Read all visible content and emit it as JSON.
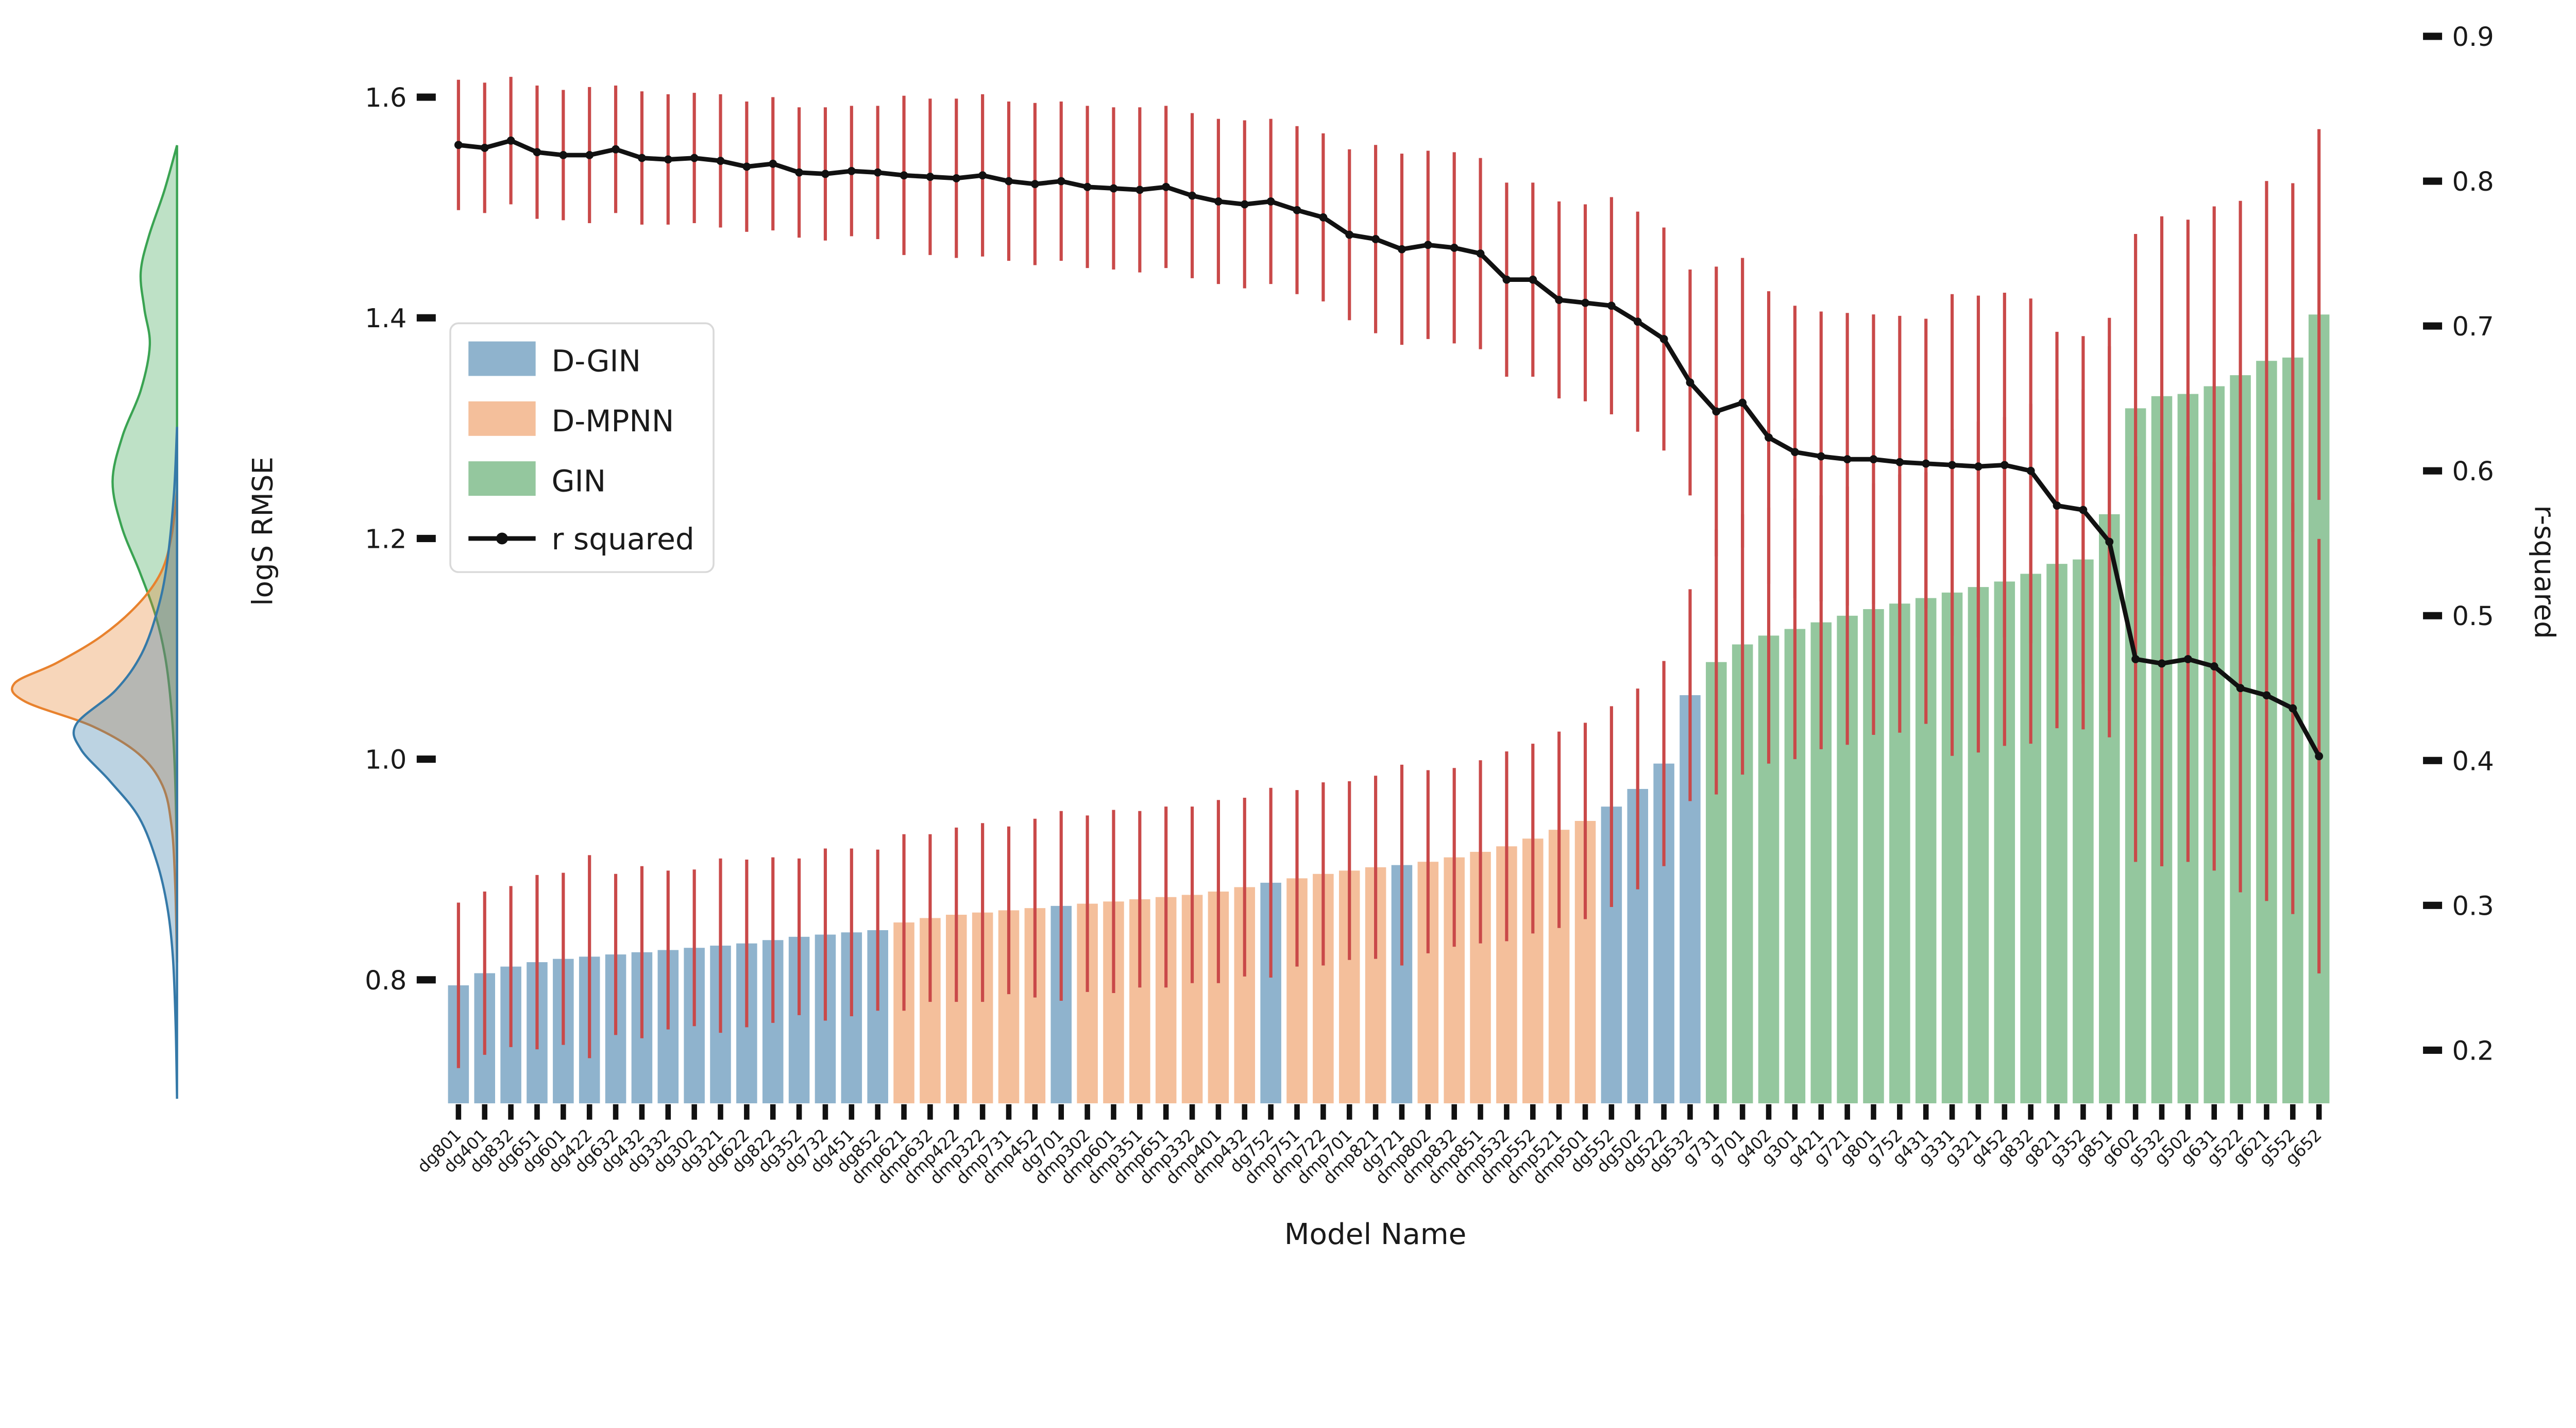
{
  "figure": {
    "xlabel": "Model Name",
    "ylabel_left": "logS RMSE",
    "ylabel_right": "r-squared"
  },
  "legend": {
    "items": [
      {
        "label": "D-GIN",
        "swatch": "#8fb3cd",
        "type": "patch"
      },
      {
        "label": "D-MPNN",
        "swatch": "#f4bf9b",
        "type": "patch"
      },
      {
        "label": "GIN",
        "swatch": "#94c79e",
        "type": "patch"
      },
      {
        "label": "r squared",
        "swatch": "#111111",
        "type": "line"
      }
    ]
  },
  "chart_data": {
    "type": "bar",
    "title": "",
    "xlabel": "Model Name",
    "ylabel": "logS RMSE",
    "ylabel_right": "r-squared",
    "grid": false,
    "legend_position": "upper-left-inside",
    "yticks_left": [
      1.6,
      1.4,
      1.2,
      1.0,
      0.8
    ],
    "yticks_right": [
      0.9,
      0.8,
      0.7,
      0.6,
      0.5,
      0.4,
      0.3,
      0.2
    ],
    "ylim_left": [
      0.688,
      1.663
    ],
    "ylim_right": [
      0.163,
      0.906
    ],
    "colors": {
      "error_bar": "#c94949",
      "r2_line": "#111111",
      "groups": {
        "D-GIN": {
          "bar": "#8fb3cd",
          "kde": "#3579a8"
        },
        "D-MPNN": {
          "bar": "#f4bf9b",
          "kde": "#e8822e"
        },
        "GIN": {
          "bar": "#94c79e",
          "kde": "#3aa352"
        }
      }
    },
    "bars": [
      {
        "label": "dg801",
        "group": "D-GIN",
        "rmse": 0.795,
        "rmse_err": 0.075,
        "r2": 0.825,
        "r2_err": 0.045
      },
      {
        "label": "dg401",
        "group": "D-GIN",
        "rmse": 0.806,
        "rmse_err": 0.074,
        "r2": 0.823,
        "r2_err": 0.045
      },
      {
        "label": "dg832",
        "group": "D-GIN",
        "rmse": 0.812,
        "rmse_err": 0.073,
        "r2": 0.828,
        "r2_err": 0.044
      },
      {
        "label": "dg651",
        "group": "D-GIN",
        "rmse": 0.816,
        "rmse_err": 0.079,
        "r2": 0.82,
        "r2_err": 0.046
      },
      {
        "label": "dg601",
        "group": "D-GIN",
        "rmse": 0.819,
        "rmse_err": 0.078,
        "r2": 0.818,
        "r2_err": 0.045
      },
      {
        "label": "dg422",
        "group": "D-GIN",
        "rmse": 0.821,
        "rmse_err": 0.092,
        "r2": 0.818,
        "r2_err": 0.047
      },
      {
        "label": "dg632",
        "group": "D-GIN",
        "rmse": 0.823,
        "rmse_err": 0.073,
        "r2": 0.822,
        "r2_err": 0.044
      },
      {
        "label": "dg432",
        "group": "D-GIN",
        "rmse": 0.825,
        "rmse_err": 0.078,
        "r2": 0.816,
        "r2_err": 0.046
      },
      {
        "label": "dg332",
        "group": "D-GIN",
        "rmse": 0.827,
        "rmse_err": 0.072,
        "r2": 0.815,
        "r2_err": 0.045
      },
      {
        "label": "dg302",
        "group": "D-GIN",
        "rmse": 0.829,
        "rmse_err": 0.071,
        "r2": 0.816,
        "r2_err": 0.045
      },
      {
        "label": "dg321",
        "group": "D-GIN",
        "rmse": 0.831,
        "rmse_err": 0.079,
        "r2": 0.814,
        "r2_err": 0.046
      },
      {
        "label": "dg622",
        "group": "D-GIN",
        "rmse": 0.833,
        "rmse_err": 0.076,
        "r2": 0.81,
        "r2_err": 0.045
      },
      {
        "label": "dg822",
        "group": "D-GIN",
        "rmse": 0.836,
        "rmse_err": 0.075,
        "r2": 0.812,
        "r2_err": 0.046
      },
      {
        "label": "dg352",
        "group": "D-GIN",
        "rmse": 0.839,
        "rmse_err": 0.071,
        "r2": 0.806,
        "r2_err": 0.045
      },
      {
        "label": "dg732",
        "group": "D-GIN",
        "rmse": 0.841,
        "rmse_err": 0.078,
        "r2": 0.805,
        "r2_err": 0.046
      },
      {
        "label": "dg451",
        "group": "D-GIN",
        "rmse": 0.843,
        "rmse_err": 0.076,
        "r2": 0.807,
        "r2_err": 0.045
      },
      {
        "label": "dg852",
        "group": "D-GIN",
        "rmse": 0.845,
        "rmse_err": 0.073,
        "r2": 0.806,
        "r2_err": 0.046
      },
      {
        "label": "dmp621",
        "group": "D-MPNN",
        "rmse": 0.852,
        "rmse_err": 0.08,
        "r2": 0.804,
        "r2_err": 0.055
      },
      {
        "label": "dmp632",
        "group": "D-MPNN",
        "rmse": 0.856,
        "rmse_err": 0.076,
        "r2": 0.803,
        "r2_err": 0.054
      },
      {
        "label": "dmp422",
        "group": "D-MPNN",
        "rmse": 0.859,
        "rmse_err": 0.079,
        "r2": 0.802,
        "r2_err": 0.055
      },
      {
        "label": "dmp322",
        "group": "D-MPNN",
        "rmse": 0.861,
        "rmse_err": 0.081,
        "r2": 0.804,
        "r2_err": 0.056
      },
      {
        "label": "dmp731",
        "group": "D-MPNN",
        "rmse": 0.863,
        "rmse_err": 0.076,
        "r2": 0.8,
        "r2_err": 0.055
      },
      {
        "label": "dmp452",
        "group": "D-MPNN",
        "rmse": 0.865,
        "rmse_err": 0.081,
        "r2": 0.798,
        "r2_err": 0.056
      },
      {
        "label": "dg701",
        "group": "D-GIN",
        "rmse": 0.867,
        "rmse_err": 0.086,
        "r2": 0.8,
        "r2_err": 0.055
      },
      {
        "label": "dmp302",
        "group": "D-MPNN",
        "rmse": 0.869,
        "rmse_err": 0.08,
        "r2": 0.796,
        "r2_err": 0.056
      },
      {
        "label": "dmp601",
        "group": "D-MPNN",
        "rmse": 0.871,
        "rmse_err": 0.083,
        "r2": 0.795,
        "r2_err": 0.056
      },
      {
        "label": "dmp351",
        "group": "D-MPNN",
        "rmse": 0.873,
        "rmse_err": 0.08,
        "r2": 0.794,
        "r2_err": 0.057
      },
      {
        "label": "dmp651",
        "group": "D-MPNN",
        "rmse": 0.875,
        "rmse_err": 0.082,
        "r2": 0.796,
        "r2_err": 0.056
      },
      {
        "label": "dmp332",
        "group": "D-MPNN",
        "rmse": 0.877,
        "rmse_err": 0.08,
        "r2": 0.79,
        "r2_err": 0.057
      },
      {
        "label": "dmp401",
        "group": "D-MPNN",
        "rmse": 0.88,
        "rmse_err": 0.083,
        "r2": 0.786,
        "r2_err": 0.057
      },
      {
        "label": "dmp432",
        "group": "D-MPNN",
        "rmse": 0.884,
        "rmse_err": 0.081,
        "r2": 0.784,
        "r2_err": 0.058
      },
      {
        "label": "dg752",
        "group": "D-GIN",
        "rmse": 0.888,
        "rmse_err": 0.086,
        "r2": 0.786,
        "r2_err": 0.057
      },
      {
        "label": "dmp751",
        "group": "D-MPNN",
        "rmse": 0.892,
        "rmse_err": 0.08,
        "r2": 0.78,
        "r2_err": 0.058
      },
      {
        "label": "dmp722",
        "group": "D-MPNN",
        "rmse": 0.896,
        "rmse_err": 0.083,
        "r2": 0.775,
        "r2_err": 0.058
      },
      {
        "label": "dmp701",
        "group": "D-MPNN",
        "rmse": 0.899,
        "rmse_err": 0.081,
        "r2": 0.763,
        "r2_err": 0.059
      },
      {
        "label": "dmp821",
        "group": "D-MPNN",
        "rmse": 0.902,
        "rmse_err": 0.083,
        "r2": 0.76,
        "r2_err": 0.065
      },
      {
        "label": "dg721",
        "group": "D-GIN",
        "rmse": 0.904,
        "rmse_err": 0.091,
        "r2": 0.753,
        "r2_err": 0.066
      },
      {
        "label": "dmp802",
        "group": "D-MPNN",
        "rmse": 0.907,
        "rmse_err": 0.083,
        "r2": 0.756,
        "r2_err": 0.065
      },
      {
        "label": "dmp832",
        "group": "D-MPNN",
        "rmse": 0.911,
        "rmse_err": 0.081,
        "r2": 0.754,
        "r2_err": 0.066
      },
      {
        "label": "dmp851",
        "group": "D-MPNN",
        "rmse": 0.916,
        "rmse_err": 0.083,
        "r2": 0.75,
        "r2_err": 0.066
      },
      {
        "label": "dmp532",
        "group": "D-MPNN",
        "rmse": 0.921,
        "rmse_err": 0.086,
        "r2": 0.732,
        "r2_err": 0.067
      },
      {
        "label": "dmp552",
        "group": "D-MPNN",
        "rmse": 0.928,
        "rmse_err": 0.086,
        "r2": 0.732,
        "r2_err": 0.067
      },
      {
        "label": "dmp521",
        "group": "D-MPNN",
        "rmse": 0.936,
        "rmse_err": 0.089,
        "r2": 0.718,
        "r2_err": 0.068
      },
      {
        "label": "dmp501",
        "group": "D-MPNN",
        "rmse": 0.944,
        "rmse_err": 0.089,
        "r2": 0.716,
        "r2_err": 0.068
      },
      {
        "label": "dg552",
        "group": "D-GIN",
        "rmse": 0.957,
        "rmse_err": 0.091,
        "r2": 0.714,
        "r2_err": 0.075
      },
      {
        "label": "dg502",
        "group": "D-GIN",
        "rmse": 0.973,
        "rmse_err": 0.091,
        "r2": 0.703,
        "r2_err": 0.076
      },
      {
        "label": "dg522",
        "group": "D-GIN",
        "rmse": 0.996,
        "rmse_err": 0.093,
        "r2": 0.691,
        "r2_err": 0.077
      },
      {
        "label": "dg532",
        "group": "D-GIN",
        "rmse": 1.058,
        "rmse_err": 0.096,
        "r2": 0.661,
        "r2_err": 0.078
      },
      {
        "label": "g731",
        "group": "GIN",
        "rmse": 1.088,
        "rmse_err": 0.12,
        "r2": 0.641,
        "r2_err": 0.1
      },
      {
        "label": "g701",
        "group": "GIN",
        "rmse": 1.104,
        "rmse_err": 0.118,
        "r2": 0.647,
        "r2_err": 0.1
      },
      {
        "label": "g402",
        "group": "GIN",
        "rmse": 1.112,
        "rmse_err": 0.116,
        "r2": 0.623,
        "r2_err": 0.101
      },
      {
        "label": "g301",
        "group": "GIN",
        "rmse": 1.118,
        "rmse_err": 0.118,
        "r2": 0.613,
        "r2_err": 0.101
      },
      {
        "label": "g421",
        "group": "GIN",
        "rmse": 1.124,
        "rmse_err": 0.115,
        "r2": 0.61,
        "r2_err": 0.1
      },
      {
        "label": "g721",
        "group": "GIN",
        "rmse": 1.13,
        "rmse_err": 0.117,
        "r2": 0.608,
        "r2_err": 0.101
      },
      {
        "label": "g801",
        "group": "GIN",
        "rmse": 1.136,
        "rmse_err": 0.114,
        "r2": 0.608,
        "r2_err": 0.1
      },
      {
        "label": "g752",
        "group": "GIN",
        "rmse": 1.141,
        "rmse_err": 0.117,
        "r2": 0.606,
        "r2_err": 0.101
      },
      {
        "label": "g431",
        "group": "GIN",
        "rmse": 1.146,
        "rmse_err": 0.114,
        "r2": 0.605,
        "r2_err": 0.1
      },
      {
        "label": "g331",
        "group": "GIN",
        "rmse": 1.151,
        "rmse_err": 0.148,
        "r2": 0.604,
        "r2_err": 0.118
      },
      {
        "label": "g321",
        "group": "GIN",
        "rmse": 1.156,
        "rmse_err": 0.15,
        "r2": 0.603,
        "r2_err": 0.118
      },
      {
        "label": "g452",
        "group": "GIN",
        "rmse": 1.161,
        "rmse_err": 0.149,
        "r2": 0.604,
        "r2_err": 0.119
      },
      {
        "label": "g832",
        "group": "GIN",
        "rmse": 1.168,
        "rmse_err": 0.154,
        "r2": 0.6,
        "r2_err": 0.119
      },
      {
        "label": "g821",
        "group": "GIN",
        "rmse": 1.177,
        "rmse_err": 0.149,
        "r2": 0.576,
        "r2_err": 0.12
      },
      {
        "label": "g352",
        "group": "GIN",
        "rmse": 1.181,
        "rmse_err": 0.154,
        "r2": 0.573,
        "r2_err": 0.12
      },
      {
        "label": "g851",
        "group": "GIN",
        "rmse": 1.222,
        "rmse_err": 0.178,
        "r2": 0.551,
        "r2_err": 0.135
      },
      {
        "label": "g602",
        "group": "GIN",
        "rmse": 1.318,
        "rmse_err": 0.158,
        "r2": 0.47,
        "r2_err": 0.14
      },
      {
        "label": "g532",
        "group": "GIN",
        "rmse": 1.329,
        "rmse_err": 0.163,
        "r2": 0.467,
        "r2_err": 0.14
      },
      {
        "label": "g502",
        "group": "GIN",
        "rmse": 1.331,
        "rmse_err": 0.158,
        "r2": 0.47,
        "r2_err": 0.14
      },
      {
        "label": "g631",
        "group": "GIN",
        "rmse": 1.338,
        "rmse_err": 0.163,
        "r2": 0.465,
        "r2_err": 0.141
      },
      {
        "label": "g522",
        "group": "GIN",
        "rmse": 1.348,
        "rmse_err": 0.158,
        "r2": 0.45,
        "r2_err": 0.141
      },
      {
        "label": "g621",
        "group": "GIN",
        "rmse": 1.361,
        "rmse_err": 0.163,
        "r2": 0.445,
        "r2_err": 0.142
      },
      {
        "label": "g552",
        "group": "GIN",
        "rmse": 1.364,
        "rmse_err": 0.158,
        "r2": 0.436,
        "r2_err": 0.142
      },
      {
        "label": "g652",
        "group": "GIN",
        "rmse": 1.403,
        "rmse_err": 0.168,
        "r2": 0.403,
        "r2_err": 0.15
      }
    ],
    "kde_marginal": {
      "axis_x": 390,
      "series": [
        {
          "group": "GIN",
          "points": [
            [
              320,
              0
            ],
            [
              420,
              28
            ],
            [
              520,
              62
            ],
            [
              600,
              80
            ],
            [
              680,
              72
            ],
            [
              760,
              60
            ],
            [
              860,
              80
            ],
            [
              960,
              120
            ],
            [
              1060,
              142
            ],
            [
              1160,
              122
            ],
            [
              1260,
              82
            ],
            [
              1360,
              46
            ],
            [
              1460,
              24
            ],
            [
              1580,
              11
            ],
            [
              1720,
              4
            ],
            [
              1900,
              0
            ]
          ]
        },
        {
          "group": "D-MPNN",
          "points": [
            [
              1080,
              0
            ],
            [
              1180,
              12
            ],
            [
              1260,
              35
            ],
            [
              1330,
              85
            ],
            [
              1400,
              165
            ],
            [
              1460,
              265
            ],
            [
              1505,
              358
            ],
            [
              1545,
              335
            ],
            [
              1600,
              185
            ],
            [
              1660,
              85
            ],
            [
              1730,
              32
            ],
            [
              1820,
              12
            ],
            [
              1950,
              4
            ],
            [
              2120,
              0
            ]
          ]
        },
        {
          "group": "D-GIN",
          "points": [
            [
              940,
              0
            ],
            [
              1090,
              7
            ],
            [
              1240,
              22
            ],
            [
              1340,
              42
            ],
            [
              1440,
              78
            ],
            [
              1520,
              135
            ],
            [
              1595,
              222
            ],
            [
              1650,
              212
            ],
            [
              1720,
              148
            ],
            [
              1800,
              84
            ],
            [
              1900,
              44
            ],
            [
              2000,
              21
            ],
            [
              2110,
              9
            ],
            [
              2260,
              3
            ],
            [
              2420,
              0
            ]
          ]
        }
      ]
    }
  }
}
